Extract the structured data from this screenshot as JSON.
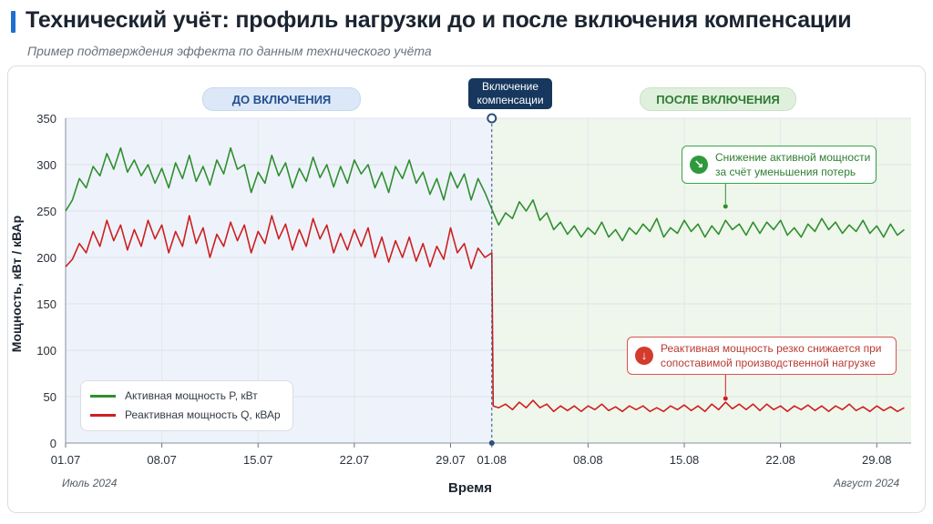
{
  "header": {
    "title": "Технический учёт: профиль нагрузки до и после включения компенсации",
    "subtitle": "Пример подтверждения эффекта по данным технического учёта"
  },
  "phases": {
    "before_label": "ДО ВКЛЮЧЕНИЯ",
    "after_label": "ПОСЛЕ ВКЛЮЧЕНИЯ",
    "switch_label": "Включение компенсации"
  },
  "annotations": {
    "active": "Снижение активной мощности за счёт уменьшения потерь",
    "reactive": "Реактивная мощность резко снижается при сопоставимой производственной нагрузке"
  },
  "axes": {
    "xlabel": "Время",
    "ylabel": "Мощность, кВт / кВАр",
    "month_left": "Июль 2024",
    "month_right": "Август 2024"
  },
  "colors": {
    "active": "#2f8f2f",
    "reactive": "#cc2020",
    "before_bg": "#eef3fb",
    "after_bg": "#eff6ec",
    "switch_line": "#2b4f7e"
  },
  "chart_data": {
    "type": "line",
    "title": "Технический учёт: профиль нагрузки до и после включения компенсации",
    "subtitle": "Пример подтверждения эффекта по данным технического учёта",
    "xlabel": "Время",
    "ylabel": "Мощность, кВт / кВАр",
    "ylim": [
      0,
      350
    ],
    "yticks": [
      0,
      50,
      100,
      150,
      200,
      250,
      300,
      350
    ],
    "xlim": [
      0,
      61.5
    ],
    "x_unit": "days from 01.07.2024",
    "xticks": [
      {
        "x": 0,
        "label": "01.07"
      },
      {
        "x": 7,
        "label": "08.07"
      },
      {
        "x": 14,
        "label": "15.07"
      },
      {
        "x": 21,
        "label": "22.07"
      },
      {
        "x": 28,
        "label": "29.07"
      },
      {
        "x": 31,
        "label": "01.08"
      },
      {
        "x": 38,
        "label": "08.08"
      },
      {
        "x": 45,
        "label": "15.08"
      },
      {
        "x": 52,
        "label": "22.08"
      },
      {
        "x": 59,
        "label": "29.08"
      }
    ],
    "switch_x": 31,
    "grid": true,
    "legend_position": "bottom-left",
    "series": [
      {
        "name": "Активная мощность P, кВт",
        "color": "#2f8f2f",
        "points": [
          [
            0,
            250
          ],
          [
            0.5,
            262
          ],
          [
            1,
            285
          ],
          [
            1.5,
            275
          ],
          [
            2,
            298
          ],
          [
            2.5,
            288
          ],
          [
            3,
            312
          ],
          [
            3.5,
            295
          ],
          [
            4,
            318
          ],
          [
            4.5,
            292
          ],
          [
            5,
            305
          ],
          [
            5.5,
            288
          ],
          [
            6,
            300
          ],
          [
            6.5,
            280
          ],
          [
            7,
            296
          ],
          [
            7.5,
            275
          ],
          [
            8,
            302
          ],
          [
            8.5,
            285
          ],
          [
            9,
            310
          ],
          [
            9.5,
            282
          ],
          [
            10,
            298
          ],
          [
            10.5,
            278
          ],
          [
            11,
            305
          ],
          [
            11.5,
            290
          ],
          [
            12,
            318
          ],
          [
            12.5,
            295
          ],
          [
            13,
            300
          ],
          [
            13.5,
            270
          ],
          [
            14,
            292
          ],
          [
            14.5,
            280
          ],
          [
            15,
            310
          ],
          [
            15.5,
            288
          ],
          [
            16,
            302
          ],
          [
            16.5,
            275
          ],
          [
            17,
            296
          ],
          [
            17.5,
            282
          ],
          [
            18,
            308
          ],
          [
            18.5,
            286
          ],
          [
            19,
            300
          ],
          [
            19.5,
            276
          ],
          [
            20,
            298
          ],
          [
            20.5,
            280
          ],
          [
            21,
            305
          ],
          [
            21.5,
            290
          ],
          [
            22,
            300
          ],
          [
            22.5,
            275
          ],
          [
            23,
            292
          ],
          [
            23.5,
            270
          ],
          [
            24,
            298
          ],
          [
            24.5,
            285
          ],
          [
            25,
            305
          ],
          [
            25.5,
            280
          ],
          [
            26,
            292
          ],
          [
            26.5,
            268
          ],
          [
            27,
            285
          ],
          [
            27.5,
            262
          ],
          [
            28,
            292
          ],
          [
            28.5,
            275
          ],
          [
            29,
            290
          ],
          [
            29.5,
            262
          ],
          [
            30,
            285
          ],
          [
            30.5,
            270
          ],
          [
            31,
            252
          ],
          [
            31.5,
            235
          ],
          [
            32,
            248
          ],
          [
            32.5,
            242
          ],
          [
            33,
            260
          ],
          [
            33.5,
            250
          ],
          [
            34,
            262
          ],
          [
            34.5,
            240
          ],
          [
            35,
            248
          ],
          [
            35.5,
            230
          ],
          [
            36,
            238
          ],
          [
            36.5,
            225
          ],
          [
            37,
            234
          ],
          [
            37.5,
            222
          ],
          [
            38,
            232
          ],
          [
            38.5,
            225
          ],
          [
            39,
            238
          ],
          [
            39.5,
            222
          ],
          [
            40,
            230
          ],
          [
            40.5,
            218
          ],
          [
            41,
            232
          ],
          [
            41.5,
            225
          ],
          [
            42,
            236
          ],
          [
            42.5,
            228
          ],
          [
            43,
            242
          ],
          [
            43.5,
            222
          ],
          [
            44,
            232
          ],
          [
            44.5,
            226
          ],
          [
            45,
            240
          ],
          [
            45.5,
            228
          ],
          [
            46,
            236
          ],
          [
            46.5,
            222
          ],
          [
            47,
            234
          ],
          [
            47.5,
            225
          ],
          [
            48,
            240
          ],
          [
            48.5,
            230
          ],
          [
            49,
            236
          ],
          [
            49.5,
            224
          ],
          [
            50,
            238
          ],
          [
            50.5,
            226
          ],
          [
            51,
            238
          ],
          [
            51.5,
            230
          ],
          [
            52,
            240
          ],
          [
            52.5,
            224
          ],
          [
            53,
            232
          ],
          [
            53.5,
            222
          ],
          [
            54,
            236
          ],
          [
            54.5,
            228
          ],
          [
            55,
            242
          ],
          [
            55.5,
            230
          ],
          [
            56,
            238
          ],
          [
            56.5,
            226
          ],
          [
            57,
            235
          ],
          [
            57.5,
            228
          ],
          [
            58,
            240
          ],
          [
            58.5,
            226
          ],
          [
            59,
            234
          ],
          [
            59.5,
            222
          ],
          [
            60,
            236
          ],
          [
            60.5,
            224
          ],
          [
            61,
            230
          ]
        ]
      },
      {
        "name": "Реактивная мощность Q, кВАр",
        "color": "#cc2020",
        "points": [
          [
            0,
            190
          ],
          [
            0.5,
            198
          ],
          [
            1,
            215
          ],
          [
            1.5,
            205
          ],
          [
            2,
            228
          ],
          [
            2.5,
            212
          ],
          [
            3,
            240
          ],
          [
            3.5,
            218
          ],
          [
            4,
            235
          ],
          [
            4.5,
            208
          ],
          [
            5,
            230
          ],
          [
            5.5,
            212
          ],
          [
            6,
            240
          ],
          [
            6.5,
            220
          ],
          [
            7,
            235
          ],
          [
            7.5,
            205
          ],
          [
            8,
            228
          ],
          [
            8.5,
            212
          ],
          [
            9,
            245
          ],
          [
            9.5,
            215
          ],
          [
            10,
            232
          ],
          [
            10.5,
            200
          ],
          [
            11,
            225
          ],
          [
            11.5,
            212
          ],
          [
            12,
            238
          ],
          [
            12.5,
            218
          ],
          [
            13,
            235
          ],
          [
            13.5,
            205
          ],
          [
            14,
            228
          ],
          [
            14.5,
            215
          ],
          [
            15,
            245
          ],
          [
            15.5,
            220
          ],
          [
            16,
            236
          ],
          [
            16.5,
            208
          ],
          [
            17,
            230
          ],
          [
            17.5,
            212
          ],
          [
            18,
            242
          ],
          [
            18.5,
            220
          ],
          [
            19,
            235
          ],
          [
            19.5,
            205
          ],
          [
            20,
            226
          ],
          [
            20.5,
            208
          ],
          [
            21,
            230
          ],
          [
            21.5,
            212
          ],
          [
            22,
            232
          ],
          [
            22.5,
            200
          ],
          [
            23,
            222
          ],
          [
            23.5,
            195
          ],
          [
            24,
            218
          ],
          [
            24.5,
            200
          ],
          [
            25,
            222
          ],
          [
            25.5,
            196
          ],
          [
            26,
            215
          ],
          [
            26.5,
            190
          ],
          [
            27,
            212
          ],
          [
            27.5,
            198
          ],
          [
            28,
            232
          ],
          [
            28.5,
            205
          ],
          [
            29,
            215
          ],
          [
            29.5,
            188
          ],
          [
            30,
            210
          ],
          [
            30.5,
            200
          ],
          [
            31,
            205
          ],
          [
            31.1,
            40
          ],
          [
            31.5,
            38
          ],
          [
            32,
            42
          ],
          [
            32.5,
            36
          ],
          [
            33,
            44
          ],
          [
            33.5,
            38
          ],
          [
            34,
            46
          ],
          [
            34.5,
            38
          ],
          [
            35,
            42
          ],
          [
            35.5,
            34
          ],
          [
            36,
            40
          ],
          [
            36.5,
            35
          ],
          [
            37,
            40
          ],
          [
            37.5,
            34
          ],
          [
            38,
            40
          ],
          [
            38.5,
            36
          ],
          [
            39,
            42
          ],
          [
            39.5,
            35
          ],
          [
            40,
            39
          ],
          [
            40.5,
            34
          ],
          [
            41,
            40
          ],
          [
            41.5,
            36
          ],
          [
            42,
            40
          ],
          [
            42.5,
            34
          ],
          [
            43,
            38
          ],
          [
            43.5,
            34
          ],
          [
            44,
            40
          ],
          [
            44.5,
            36
          ],
          [
            45,
            41
          ],
          [
            45.5,
            35
          ],
          [
            46,
            40
          ],
          [
            46.5,
            34
          ],
          [
            47,
            42
          ],
          [
            47.5,
            36
          ],
          [
            48,
            44
          ],
          [
            48.5,
            37
          ],
          [
            49,
            42
          ],
          [
            49.5,
            36
          ],
          [
            50,
            42
          ],
          [
            50.5,
            35
          ],
          [
            51,
            42
          ],
          [
            51.5,
            36
          ],
          [
            52,
            40
          ],
          [
            52.5,
            34
          ],
          [
            53,
            40
          ],
          [
            53.5,
            36
          ],
          [
            54,
            41
          ],
          [
            54.5,
            35
          ],
          [
            55,
            40
          ],
          [
            55.5,
            34
          ],
          [
            56,
            40
          ],
          [
            56.5,
            36
          ],
          [
            57,
            42
          ],
          [
            57.5,
            35
          ],
          [
            58,
            39
          ],
          [
            58.5,
            34
          ],
          [
            59,
            40
          ],
          [
            59.5,
            35
          ],
          [
            60,
            39
          ],
          [
            60.5,
            34
          ],
          [
            61,
            38
          ]
        ]
      }
    ],
    "annotations": [
      {
        "text": "Снижение активной мощности за счёт уменьшения потерь",
        "series": "Активная мощность P, кВт",
        "x": 48,
        "y": 255
      },
      {
        "text": "Реактивная мощность резко снижается при сопоставимой производственной нагрузке",
        "series": "Реактивная мощность Q, кВАр",
        "x": 48,
        "y": 48
      }
    ]
  }
}
